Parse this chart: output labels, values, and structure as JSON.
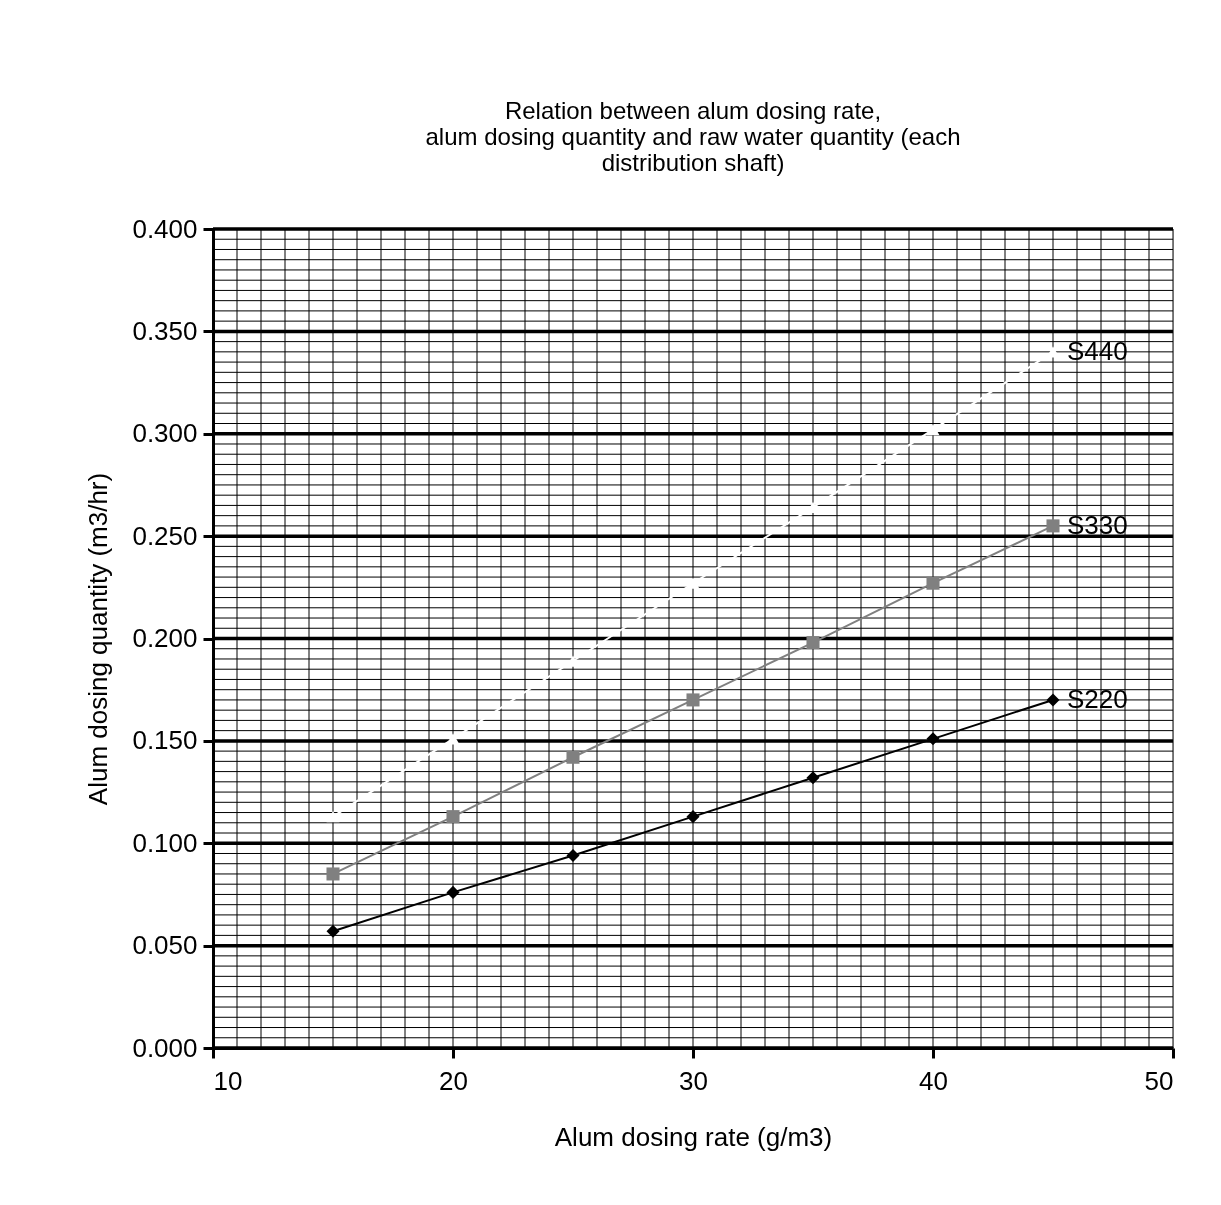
{
  "chart_data": {
    "type": "line",
    "title": "Relation between alum dosing rate,\nalum dosing quantity and raw water quantity (each\ndistribution shaft)",
    "xlabel": "Alum dosing rate (g/m3)",
    "ylabel": "Alum dosing quantity (m3/hr)",
    "x": [
      15,
      20,
      25,
      30,
      35,
      40,
      45
    ],
    "series": [
      {
        "name": "S440",
        "color": "#ffffff",
        "marker": "triangle",
        "values": [
          0.113,
          0.151,
          0.189,
          0.227,
          0.264,
          0.302,
          0.34
        ]
      },
      {
        "name": "S330",
        "color": "#808080",
        "marker": "square",
        "values": [
          0.085,
          0.113,
          0.142,
          0.17,
          0.198,
          0.227,
          0.255
        ]
      },
      {
        "name": "S220",
        "color": "#000000",
        "marker": "diamond",
        "values": [
          0.057,
          0.076,
          0.094,
          0.113,
          0.132,
          0.151,
          0.17
        ]
      }
    ],
    "xlim": [
      10,
      50
    ],
    "xticks": [
      10,
      {
        "value": 11,
        "label": null
      },
      {
        "value": 12,
        "label": null
      },
      {
        "value": 13,
        "label": null
      },
      {
        "value": 14,
        "label": null
      },
      {
        "value": 15,
        "label": null
      },
      {
        "value": 16,
        "label": null
      },
      {
        "value": 17,
        "label": null
      },
      {
        "value": 18,
        "label": null
      },
      {
        "value": 19,
        "label": null
      },
      20,
      {
        "value": 21,
        "label": null
      },
      {
        "value": 22,
        "label": null
      },
      {
        "value": 23,
        "label": null
      },
      {
        "value": 24,
        "label": null
      },
      {
        "value": 25,
        "label": null
      },
      {
        "value": 26,
        "label": null
      },
      {
        "value": 27,
        "label": null
      },
      {
        "value": 28,
        "label": null
      },
      {
        "value": 29,
        "label": null
      },
      30,
      {
        "value": 31,
        "label": null
      },
      {
        "value": 32,
        "label": null
      },
      {
        "value": 33,
        "label": null
      },
      {
        "value": 34,
        "label": null
      },
      {
        "value": 35,
        "label": null
      },
      {
        "value": 36,
        "label": null
      },
      {
        "value": 37,
        "label": null
      },
      {
        "value": 38,
        "label": null
      },
      {
        "value": 39,
        "label": null
      },
      40,
      {
        "value": 41,
        "label": null
      },
      {
        "value": 42,
        "label": null
      },
      {
        "value": 43,
        "label": null
      },
      {
        "value": 44,
        "label": null
      },
      {
        "value": 45,
        "label": null
      },
      {
        "value": 46,
        "label": null
      },
      {
        "value": 47,
        "label": null
      },
      {
        "value": 48,
        "label": null
      },
      {
        "value": 49,
        "label": null
      },
      50
    ],
    "ylim": [
      0,
      0.4
    ],
    "yticks": [
      {
        "value": 0,
        "label": "0.000"
      },
      {
        "value": 0.005,
        "label": null
      },
      {
        "value": 0.01,
        "label": null
      },
      {
        "value": 0.015,
        "label": null
      },
      {
        "value": 0.02,
        "label": null
      },
      {
        "value": 0.025,
        "label": null
      },
      {
        "value": 0.03,
        "label": null
      },
      {
        "value": 0.035,
        "label": null
      },
      {
        "value": 0.04,
        "label": null
      },
      {
        "value": 0.045,
        "label": null
      },
      {
        "value": 0.05,
        "label": "0.050"
      },
      {
        "value": 0.055,
        "label": null
      },
      {
        "value": 0.06,
        "label": null
      },
      {
        "value": 0.065,
        "label": null
      },
      {
        "value": 0.07,
        "label": null
      },
      {
        "value": 0.075,
        "label": null
      },
      {
        "value": 0.08,
        "label": null
      },
      {
        "value": 0.085,
        "label": null
      },
      {
        "value": 0.09,
        "label": null
      },
      {
        "value": 0.095,
        "label": null
      },
      {
        "value": 0.1,
        "label": "0.100"
      },
      {
        "value": 0.105,
        "label": null
      },
      {
        "value": 0.11,
        "label": null
      },
      {
        "value": 0.115,
        "label": null
      },
      {
        "value": 0.12,
        "label": null
      },
      {
        "value": 0.125,
        "label": null
      },
      {
        "value": 0.13,
        "label": null
      },
      {
        "value": 0.135,
        "label": null
      },
      {
        "value": 0.14,
        "label": null
      },
      {
        "value": 0.145,
        "label": null
      },
      {
        "value": 0.15,
        "label": "0.150"
      },
      {
        "value": 0.155,
        "label": null
      },
      {
        "value": 0.16,
        "label": null
      },
      {
        "value": 0.165,
        "label": null
      },
      {
        "value": 0.17,
        "label": null
      },
      {
        "value": 0.175,
        "label": null
      },
      {
        "value": 0.18,
        "label": null
      },
      {
        "value": 0.185,
        "label": null
      },
      {
        "value": 0.19,
        "label": null
      },
      {
        "value": 0.195,
        "label": null
      },
      {
        "value": 0.2,
        "label": "0.200"
      },
      {
        "value": 0.205,
        "label": null
      },
      {
        "value": 0.21,
        "label": null
      },
      {
        "value": 0.215,
        "label": null
      },
      {
        "value": 0.22,
        "label": null
      },
      {
        "value": 0.225,
        "label": null
      },
      {
        "value": 0.23,
        "label": null
      },
      {
        "value": 0.235,
        "label": null
      },
      {
        "value": 0.24,
        "label": null
      },
      {
        "value": 0.245,
        "label": null
      },
      {
        "value": 0.25,
        "label": "0.250"
      },
      {
        "value": 0.255,
        "label": null
      },
      {
        "value": 0.26,
        "label": null
      },
      {
        "value": 0.265,
        "label": null
      },
      {
        "value": 0.27,
        "label": null
      },
      {
        "value": 0.275,
        "label": null
      },
      {
        "value": 0.28,
        "label": null
      },
      {
        "value": 0.285,
        "label": null
      },
      {
        "value": 0.29,
        "label": null
      },
      {
        "value": 0.295,
        "label": null
      },
      {
        "value": 0.3,
        "label": "0.300"
      },
      {
        "value": 0.305,
        "label": null
      },
      {
        "value": 0.31,
        "label": null
      },
      {
        "value": 0.315,
        "label": null
      },
      {
        "value": 0.32,
        "label": null
      },
      {
        "value": 0.325,
        "label": null
      },
      {
        "value": 0.33,
        "label": null
      },
      {
        "value": 0.335,
        "label": null
      },
      {
        "value": 0.34,
        "label": null
      },
      {
        "value": 0.345,
        "label": null
      },
      {
        "value": 0.35,
        "label": "0.350"
      },
      {
        "value": 0.355,
        "label": null
      },
      {
        "value": 0.36,
        "label": null
      },
      {
        "value": 0.365,
        "label": null
      },
      {
        "value": 0.37,
        "label": null
      },
      {
        "value": 0.375,
        "label": null
      },
      {
        "value": 0.38,
        "label": null
      },
      {
        "value": 0.385,
        "label": null
      },
      {
        "value": 0.39,
        "label": null
      },
      {
        "value": 0.395,
        "label": null
      },
      {
        "value": 0.4,
        "label": "0.400"
      }
    ],
    "grid": true,
    "line_style": "solid"
  }
}
